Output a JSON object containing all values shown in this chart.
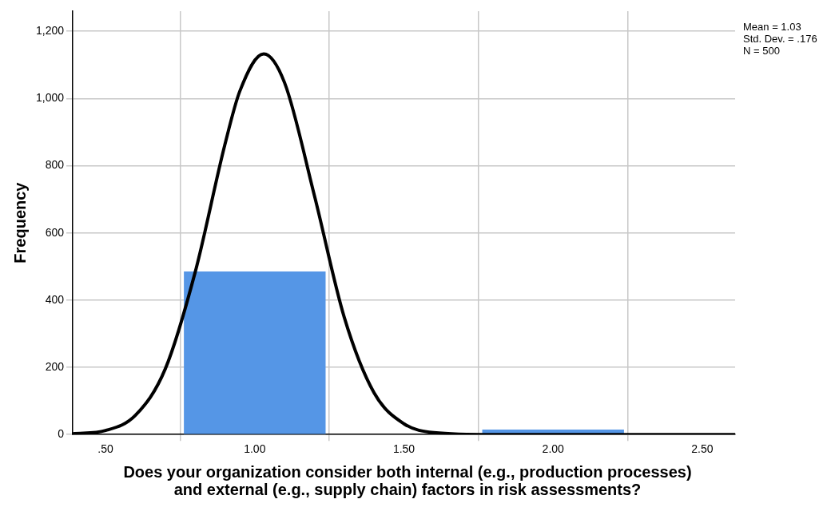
{
  "chart_data": {
    "type": "histogram",
    "xlabel": "Does your organization consider both internal (e.g., production processes) and external (e.g., supply chain) factors in risk assessments?",
    "ylabel": "Frequency",
    "bins": [
      0.5,
      1.5,
      2.5
    ],
    "values": [
      485,
      15
    ],
    "color": "#5596e6",
    "series": [
      {
        "type": "line",
        "color": "#000000",
        "x": [
          0.39,
          0.5,
          0.6,
          0.7,
          0.8,
          0.9,
          0.95,
          1.03,
          1.1,
          1.2,
          1.3,
          1.4,
          1.5,
          1.6,
          1.8,
          2.0,
          2.3,
          2.61
        ],
        "values": [
          2,
          12,
          57,
          195,
          482,
          863,
          1022,
          1133,
          1047,
          711,
          349,
          124,
          32,
          6,
          0,
          0,
          0,
          0
        ]
      }
    ],
    "xlim": [
      0.39,
      2.61
    ],
    "xticks": [
      {
        "value": 0.5,
        "label": ".50"
      },
      {
        "value": 1,
        "label": "1.00"
      },
      {
        "value": 1.5,
        "label": "1.50"
      },
      {
        "value": 2,
        "label": "2.00"
      },
      {
        "value": 2.5,
        "label": "2.50"
      }
    ],
    "ylim": [
      0,
      1260
    ],
    "yticks": [
      0,
      200,
      400,
      600,
      800,
      {
        "value": 1000,
        "label": "1,000"
      },
      {
        "value": 1200,
        "label": "1,200"
      }
    ],
    "grid": true,
    "legend": false,
    "marker": "none",
    "line_style": "solid",
    "annotations": [
      "Mean = 1.03",
      "Std. Dev. = .176",
      "N = 500"
    ]
  }
}
